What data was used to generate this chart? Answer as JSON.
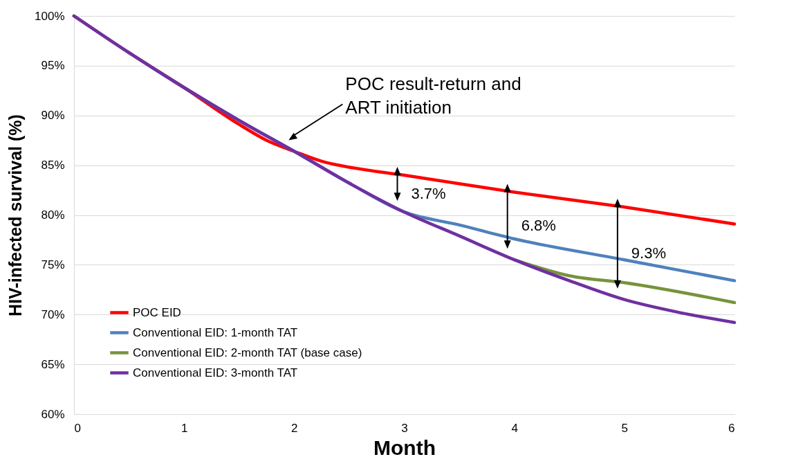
{
  "chart_data": {
    "type": "line",
    "xlabel": "Month",
    "ylabel": "HIV-infected survival (%)",
    "xlim": [
      0,
      6
    ],
    "xticks": [
      0,
      1,
      2,
      3,
      4,
      5,
      6
    ],
    "ylim": [
      60,
      100
    ],
    "yticks": [
      {
        "value": 60,
        "label": "60%"
      },
      {
        "value": 65,
        "label": "65%"
      },
      {
        "value": 70,
        "label": "70%"
      },
      {
        "value": 75,
        "label": "75%"
      },
      {
        "value": 80,
        "label": "80%"
      },
      {
        "value": 85,
        "label": "85%"
      },
      {
        "value": 90,
        "label": "90%"
      },
      {
        "value": 95,
        "label": "95%"
      },
      {
        "value": 100,
        "label": "100%"
      }
    ],
    "grid": "y",
    "legend": "bottom left",
    "line_style": "solid",
    "marker": "none",
    "series": [
      {
        "name": "POC EID",
        "color": "#ff0000",
        "x": [
          0,
          0.5,
          1,
          1.5,
          1.75,
          2,
          2.25,
          2.5,
          3,
          4,
          5,
          6
        ],
        "values": [
          100,
          96.3,
          92.8,
          89.1,
          87.5,
          86.4,
          85.4,
          84.8,
          84.0,
          82.3,
          80.8,
          79.1
        ]
      },
      {
        "name": "Conventional EID: 1-month TAT",
        "color": "#4f81bd",
        "x": [
          0,
          0.5,
          1,
          1.5,
          2,
          2.5,
          3,
          3.5,
          4,
          5,
          6
        ],
        "values": [
          100,
          96.3,
          92.8,
          89.5,
          86.4,
          83.2,
          80.3,
          79.0,
          77.6,
          75.5,
          73.4
        ]
      },
      {
        "name": "Conventional EID: 2-month TAT (base case)",
        "color": "#77933c",
        "x": [
          4,
          4.5,
          5,
          6
        ],
        "values": [
          75.5,
          73.9,
          73.2,
          71.2
        ]
      },
      {
        "name": "Conventional EID: 3-month TAT",
        "color": "#7030a0",
        "x": [
          0,
          0.5,
          1,
          1.5,
          2,
          2.5,
          3,
          3.5,
          4,
          4.5,
          5,
          5.5,
          6
        ],
        "values": [
          100,
          96.3,
          92.8,
          89.5,
          86.4,
          83.2,
          80.3,
          77.9,
          75.5,
          73.4,
          71.5,
          70.2,
          69.2
        ]
      }
    ],
    "annotations": [
      "POC result-return and ART initiation",
      {
        "text": "3.7%",
        "x": 3,
        "y": 84.0
      },
      {
        "text": "6.8%",
        "x": 4,
        "y": 82.3
      },
      {
        "text": "9.3%",
        "x": 5,
        "y": 80.8
      }
    ]
  }
}
